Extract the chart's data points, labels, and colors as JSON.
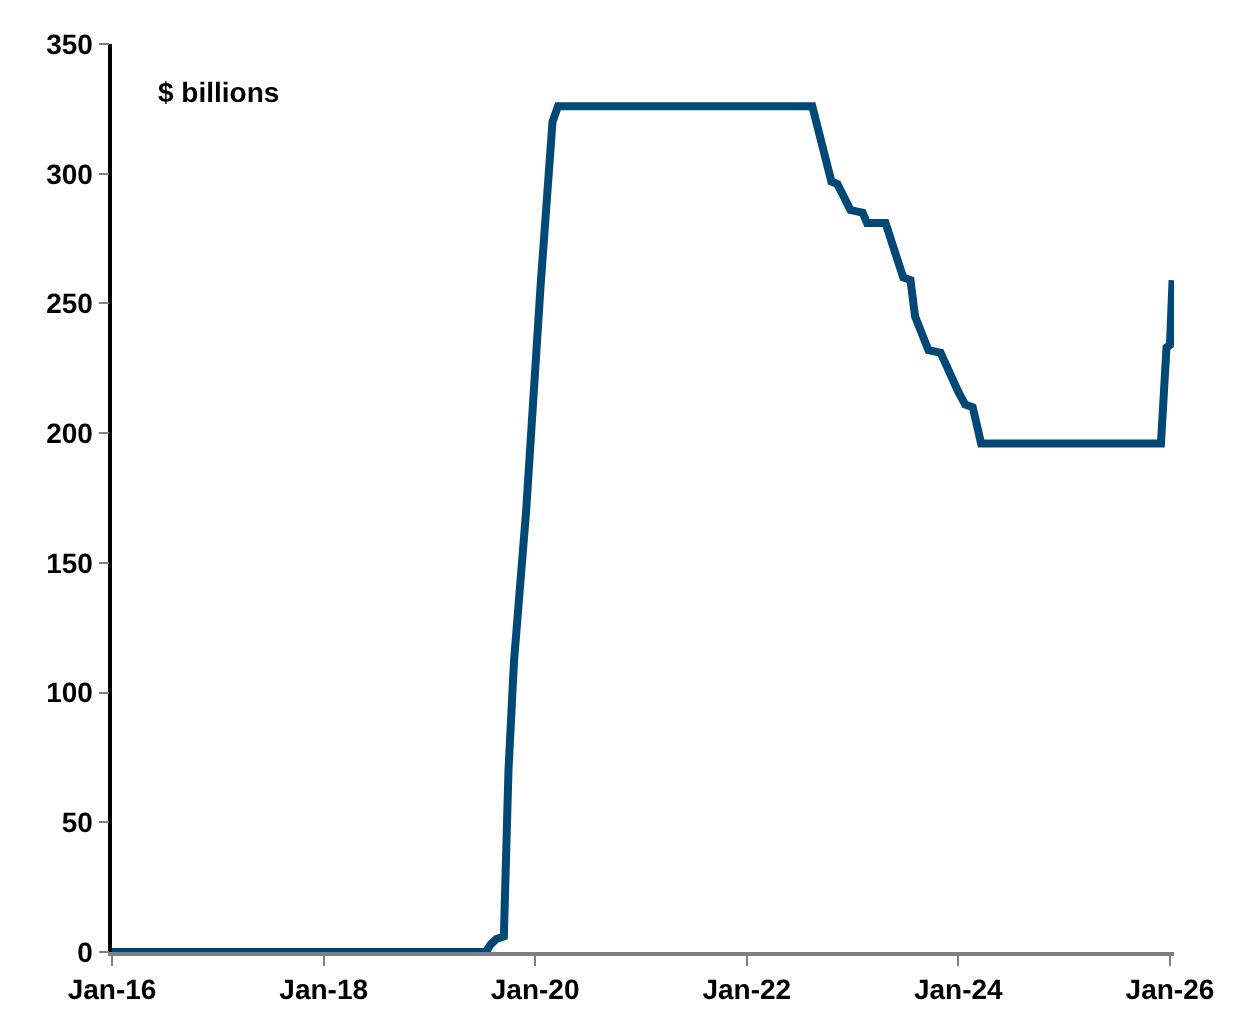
{
  "chart_data": {
    "type": "line",
    "annotations": [
      "$ billions"
    ],
    "x": [
      "2016-01-01",
      "2019-07-15",
      "2019-08-01",
      "2019-08-20",
      "2019-09-15",
      "2019-10-01",
      "2019-10-20",
      "2019-12-01",
      "2020-01-20",
      "2020-03-01",
      "2020-03-20",
      "2022-08-15",
      "2022-10-20",
      "2022-11-10",
      "2022-12-25",
      "2023-02-05",
      "2023-02-20",
      "2023-04-25",
      "2023-06-25",
      "2023-07-20",
      "2023-08-05",
      "2023-09-20",
      "2023-11-01",
      "2024-01-01",
      "2024-01-25",
      "2024-02-20",
      "2024-03-20",
      "2025-12-01",
      "2025-12-20",
      "2026-01-01",
      "2026-01-10"
    ],
    "series": [
      {
        "color": "#004876",
        "values": [
          0,
          0,
          3,
          5,
          6,
          70,
          112,
          170,
          257,
          320,
          326,
          326,
          297,
          296,
          286,
          285,
          281,
          281,
          260,
          259,
          245,
          232,
          231,
          216,
          211,
          210,
          196,
          196,
          233,
          234,
          259
        ]
      }
    ],
    "xlim": [
      "2016-01-01",
      "2026-01-15"
    ],
    "xticks": [
      {
        "value": "2016-01-01",
        "label": "Jan-16"
      },
      {
        "value": "2018-01-01",
        "label": "Jan-18"
      },
      {
        "value": "2020-01-01",
        "label": "Jan-20"
      },
      {
        "value": "2022-01-01",
        "label": "Jan-22"
      },
      {
        "value": "2024-01-01",
        "label": "Jan-24"
      },
      {
        "value": "2026-01-01",
        "label": "Jan-26"
      }
    ],
    "ylim": [
      0,
      350
    ],
    "yticks": [
      0,
      50,
      100,
      150,
      200,
      250,
      300,
      350
    ],
    "marker": "none",
    "line_style": "solid"
  }
}
